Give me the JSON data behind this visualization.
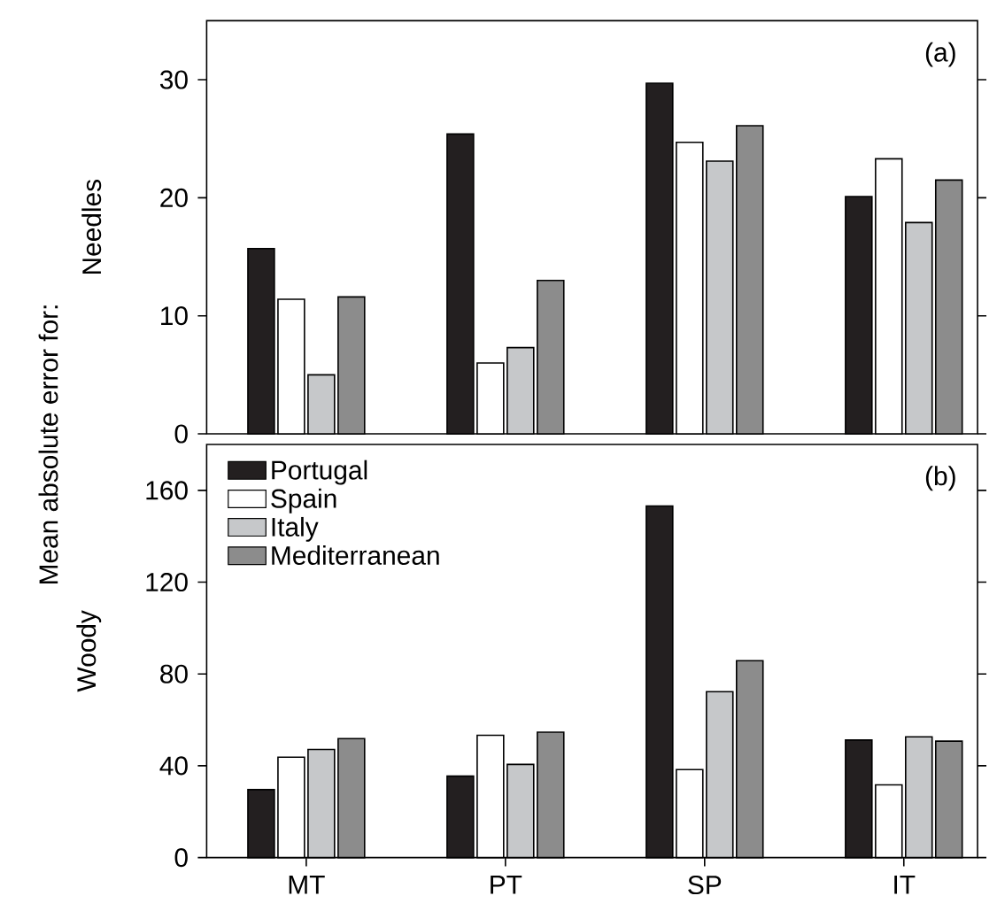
{
  "chart_data": [
    {
      "type": "bar",
      "categories": [
        null,
        null,
        null,
        null
      ],
      "ylabel": "Needles",
      "ylim": [
        0,
        35
      ],
      "yticks": [
        0,
        10,
        20,
        30
      ],
      "tick_labels": "y",
      "legend": false,
      "annotations": [
        "(a)"
      ],
      "series": [
        {
          "color": "#231f20",
          "values": [
            15.7,
            25.4,
            29.7,
            20.1
          ]
        },
        {
          "color": "#ffffff",
          "values": [
            11.4,
            6.0,
            24.7,
            23.3
          ]
        },
        {
          "color": "#c6c8ca",
          "values": [
            5.0,
            7.3,
            23.1,
            17.9
          ]
        },
        {
          "color": "#8c8c8c",
          "values": [
            11.6,
            13.0,
            26.1,
            21.5
          ]
        }
      ]
    },
    {
      "type": "bar",
      "categories": [
        "MT",
        "PT",
        "SP",
        "IT"
      ],
      "ylabel": "Woody",
      "ylim": [
        0,
        180
      ],
      "yticks": [
        0,
        40,
        80,
        120,
        160
      ],
      "legend": "top left",
      "annotations": [
        "(b)",
        "Mean absolute error for:"
      ],
      "series": [
        {
          "name": "Portugal",
          "color": "#231f20",
          "values": [
            29.6,
            35.5,
            153.2,
            51.2
          ]
        },
        {
          "name": "Spain",
          "color": "#ffffff",
          "values": [
            43.7,
            53.3,
            38.3,
            31.7
          ]
        },
        {
          "name": "Italy",
          "color": "#c6c8ca",
          "values": [
            47.1,
            40.6,
            72.3,
            52.6
          ]
        },
        {
          "name": "Mediterranean",
          "color": "#8c8c8c",
          "values": [
            51.8,
            54.6,
            85.8,
            50.7
          ]
        }
      ]
    }
  ]
}
